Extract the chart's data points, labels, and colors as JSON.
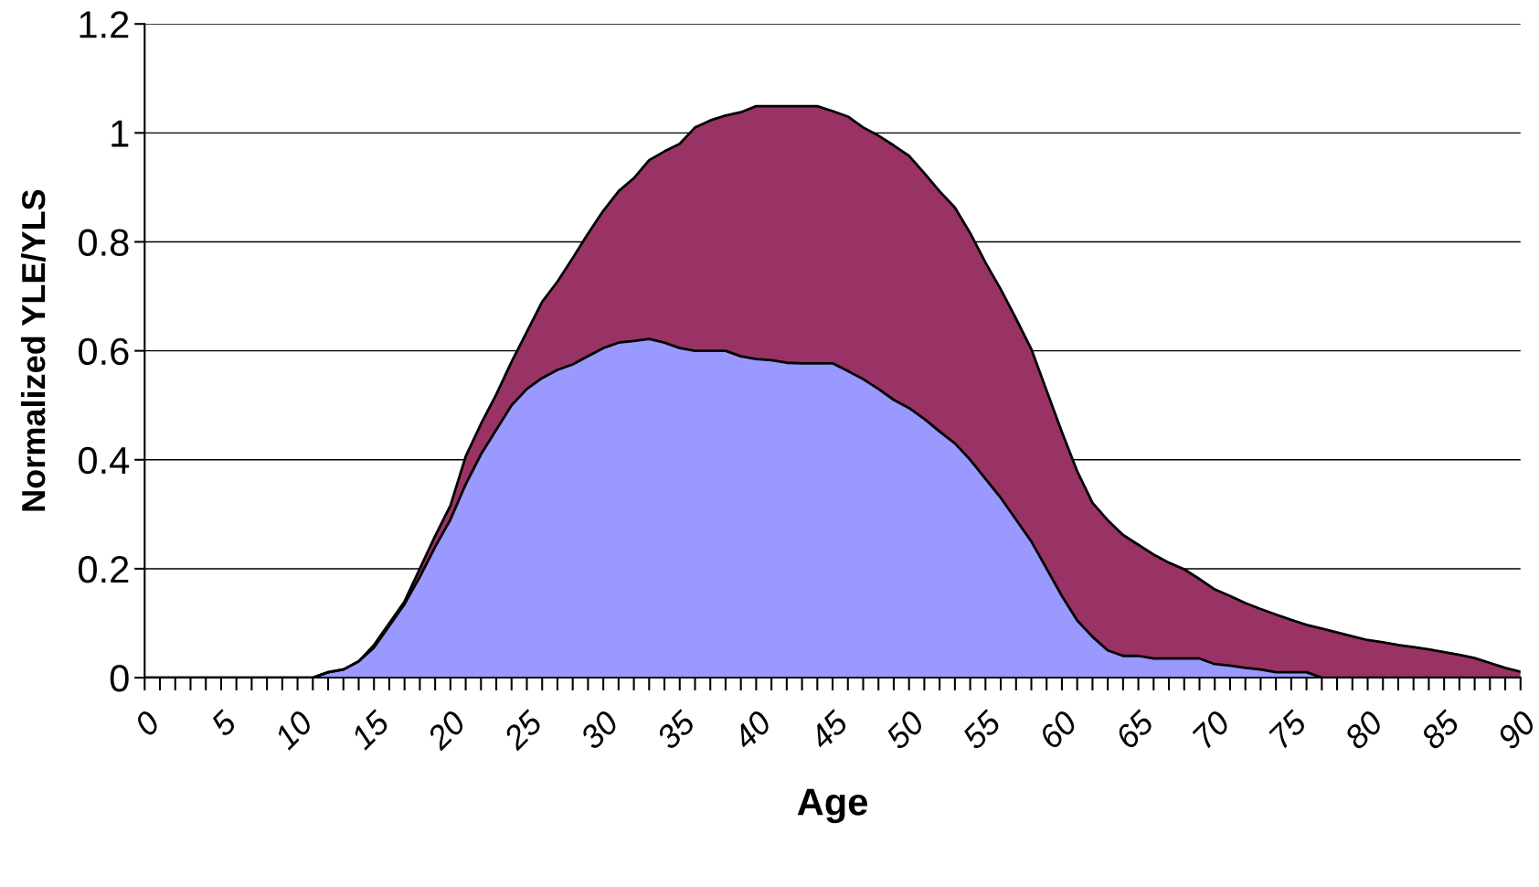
{
  "chart_data": {
    "type": "area",
    "stacked": true,
    "xlabel": "Age",
    "ylabel": "Normalized YLE/YLS",
    "categories": [
      "0",
      null,
      null,
      null,
      null,
      "5",
      null,
      null,
      null,
      null,
      "10",
      null,
      null,
      null,
      null,
      "15",
      null,
      null,
      null,
      null,
      "20",
      null,
      null,
      null,
      null,
      "25",
      null,
      null,
      null,
      null,
      "30",
      null,
      null,
      null,
      null,
      "35",
      null,
      null,
      null,
      null,
      "40",
      null,
      null,
      null,
      null,
      "45",
      null,
      null,
      null,
      null,
      "50",
      null,
      null,
      null,
      null,
      "55",
      null,
      null,
      null,
      null,
      "60",
      null,
      null,
      null,
      null,
      "65",
      null,
      null,
      null,
      null,
      "70",
      null,
      null,
      null,
      null,
      "75",
      null,
      null,
      null,
      null,
      "80",
      null,
      null,
      null,
      null,
      "85",
      null,
      null,
      null,
      null,
      "90"
    ],
    "series": [
      {
        "color": "#9999ff",
        "values": [
          0,
          0,
          0,
          0,
          0,
          0,
          0,
          0,
          0,
          0,
          0,
          0,
          0.01,
          0.015,
          0.03,
          0.055,
          0.095,
          0.135,
          0.185,
          0.24,
          0.29,
          0.355,
          0.41,
          0.455,
          0.5,
          0.53,
          0.55,
          0.565,
          0.575,
          0.59,
          0.605,
          0.615,
          0.618,
          0.622,
          0.615,
          0.605,
          0.6,
          0.6,
          0.6,
          0.59,
          0.585,
          0.583,
          0.578,
          0.577,
          0.577,
          0.577,
          0.563,
          0.548,
          0.53,
          0.51,
          0.495,
          0.475,
          0.452,
          0.43,
          0.4,
          0.365,
          0.33,
          0.29,
          0.25,
          0.2,
          0.15,
          0.105,
          0.075,
          0.05,
          0.04,
          0.04,
          0.035,
          0.035,
          0.035,
          0.035,
          0.025,
          0.022,
          0.018,
          0.015,
          0.01,
          0.01,
          0.01,
          0,
          0,
          0,
          0,
          0,
          0,
          0,
          0,
          0,
          0,
          0,
          0,
          0,
          0
        ]
      },
      {
        "color": "#993366",
        "values": [
          0,
          0,
          0,
          0,
          0,
          0,
          0,
          0,
          0,
          0,
          0,
          0,
          0,
          0,
          0,
          0.005,
          0.005,
          0.005,
          0.015,
          0.02,
          0.026,
          0.051,
          0.056,
          0.065,
          0.08,
          0.105,
          0.14,
          0.162,
          0.195,
          0.225,
          0.252,
          0.278,
          0.299,
          0.328,
          0.351,
          0.375,
          0.41,
          0.423,
          0.432,
          0.448,
          0.464,
          0.466,
          0.471,
          0.472,
          0.472,
          0.463,
          0.467,
          0.462,
          0.465,
          0.467,
          0.463,
          0.451,
          0.441,
          0.433,
          0.416,
          0.397,
          0.383,
          0.369,
          0.353,
          0.327,
          0.301,
          0.274,
          0.246,
          0.239,
          0.222,
          0.204,
          0.191,
          0.176,
          0.164,
          0.146,
          0.137,
          0.128,
          0.119,
          0.111,
          0.106,
          0.096,
          0.087,
          0.09,
          0.083,
          0.076,
          0.069,
          0.065,
          0.06,
          0.056,
          0.052,
          0.047,
          0.042,
          0.036,
          0.027,
          0.018,
          0.011
        ]
      }
    ],
    "ylim": [
      0,
      1.2
    ],
    "yticks": [
      0,
      0.2,
      0.4,
      0.6,
      0.8,
      1,
      1.2
    ],
    "grid": "y",
    "legend": false
  }
}
